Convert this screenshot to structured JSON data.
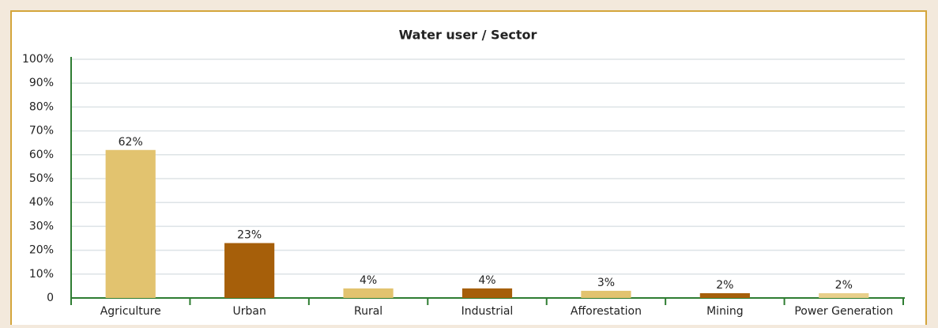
{
  "chart_data": {
    "type": "bar",
    "title": "Water user / Sector",
    "categories": [
      "Agriculture",
      "Urban",
      "Rural",
      "Industrial",
      "Afforestation",
      "Mining",
      "Power Generation"
    ],
    "values": [
      62,
      23,
      4,
      4,
      3,
      2,
      2
    ],
    "value_labels": [
      "62%",
      "23%",
      "4%",
      "4%",
      "3%",
      "2%",
      "2%"
    ],
    "colors": [
      "#e2c36f",
      "#a65f0a",
      "#e2c36f",
      "#a65f0a",
      "#e2c36f",
      "#a65f0a",
      "#e8cf8a"
    ],
    "ylim": [
      0,
      100
    ],
    "yticks": [
      0,
      {
        "value": 10,
        "label": "10%"
      },
      {
        "value": 20,
        "label": "20%"
      },
      {
        "value": 30,
        "label": "30%"
      },
      {
        "value": 40,
        "label": "40%"
      },
      {
        "value": 50,
        "label": "50%"
      },
      {
        "value": 60,
        "label": "60%"
      },
      {
        "value": 70,
        "label": "70%"
      },
      {
        "value": 80,
        "label": "80%"
      },
      {
        "value": 90,
        "label": "90%"
      },
      {
        "value": 100,
        "label": "100%"
      }
    ],
    "grid": true
  }
}
